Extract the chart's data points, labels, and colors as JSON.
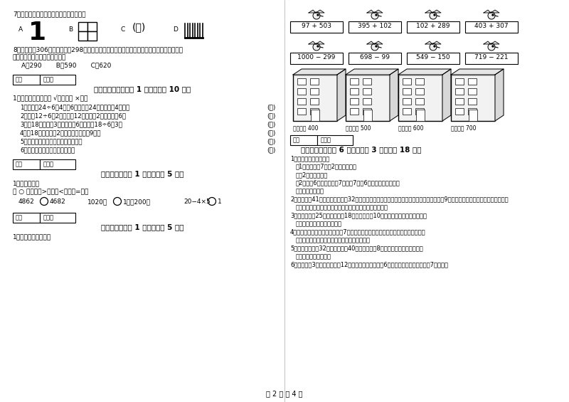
{
  "page_bg": "#ffffff",
  "page_width": 8.0,
  "page_height": 5.65,
  "dpi": 100,
  "left_col": {
    "q7_title": "7、下列图形中，轴对称图形是（　　）。",
    "q8_line1": "8、四年级有306人，五年级有298人，二年级的学生人数比四、五年级的学生总人数少一些，",
    "q8_line2": "二年级可能有（　　）名学生。",
    "q8_opts": "A．290       B．590       C．620",
    "sec5_header": "五、判断对与错（共 1 大题，共计 10 分）",
    "sec5_q1": "1、判断题：（对的打 √，错的打 ×）。",
    "sec5_items": [
      "1．在算式24÷6＝4中，6是除数，24是被除数，4是商。",
      "2．算式12÷6＝2，表示抂12平均分成2份，每份是6。",
      "3．抂18平均分成3份，每份是6，列式是18÷6＝3。",
      "4．抂18个苹果分给2个小朋友，每人刉9个。",
      "5．因和除数相乘，结果等于被除数。",
      "6．每份分得同样多，叫平均分。"
    ],
    "sec6_header": "六、比一比（共 1 大题，共计 5 分）",
    "sec6_q1": "1、我会比较。",
    "sec6_fill": "在 ○ 里填上『>』、『<』或『=』。",
    "sec7_header": "七、连一连（共 1 大题，共计 5 分）",
    "sec7_q1": "1、估一估，连一连。"
  },
  "right_col": {
    "calc_row1": [
      "97 + 503",
      "395 + 102",
      "102 + 289",
      "403 + 307"
    ],
    "calc_row2": [
      "1000 − 299",
      "698 − 99",
      "549 − 150",
      "719 − 221"
    ],
    "building_labels": [
      "得数接近 400",
      "得数大约 500",
      "得数接近 600",
      "得数大约 700"
    ],
    "sec8_header": "八、解决问题（共 6 小题，每题 3 分，共计 18 分）",
    "sec8_items": [
      "1、新学期老师排座位。",
      "（1）每排座有7人，2排座多少人？",
      "答：2排座　　人。",
      "（2）有时6排，每排座有7人，第7排座6人，一共有多少人？",
      "答：一共　　人。",
      "2、据老师有41本练习本，又买来32个，据老师一共有多少个本子？如果把这些本子平均分给9个同学，每个同学可以分到几个本子？",
      "答：据老师一共有　　个，每个同学可以分到　　个本子。",
      "3、商店原来有25盖椅子，卖出18盖后，又运来10盖，这时商店有椅子多少盖？",
      "答：这时商店有椅子　　盖。",
      "4、有一本故事书，把这些书分给7个小朋友，平均每个小朋友分到几本，还剩几本？",
      "答：平均每个小朋友分到　　本，还剩　　本。",
      "5、二小一班有人32人，二班有人40人，做游戏每8人一个组，可以分几组玩？",
      "答：可以分　　练玩。",
      "6、小明买了3个笔记本，用去12元。小云也买了同样的6个笔记本，算一算小云用了7多少钱？"
    ]
  }
}
